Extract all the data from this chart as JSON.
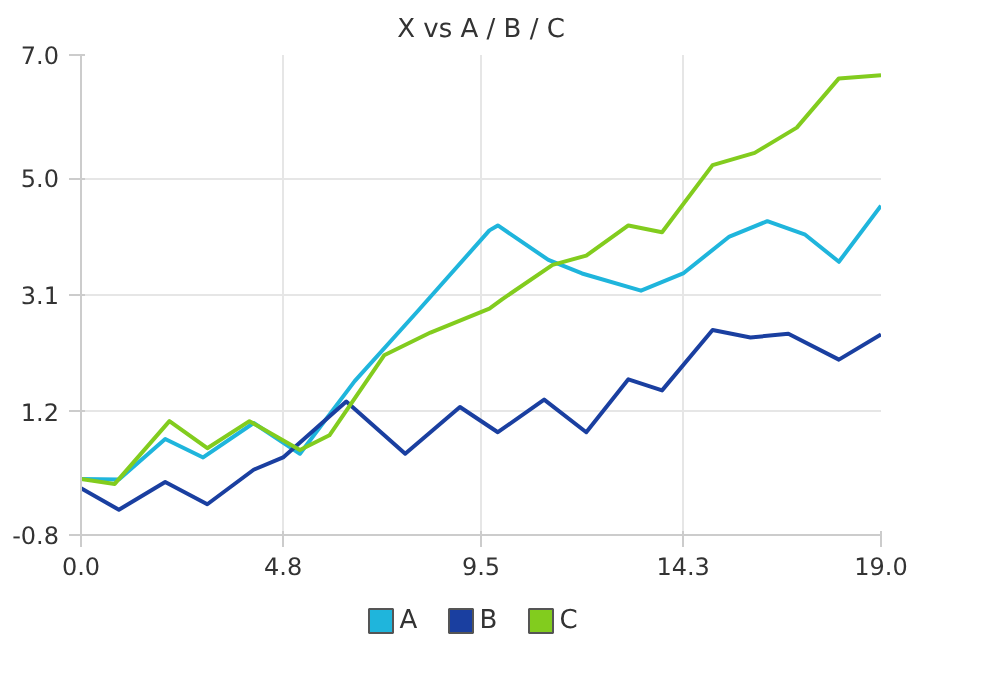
{
  "chart_data": {
    "type": "line",
    "title": "X vs A / B / C",
    "xlim": [
      0,
      19
    ],
    "ylim": [
      -0.8,
      7.0
    ],
    "xticks": [
      {
        "value": 0,
        "label": "0.0"
      },
      4.8,
      9.5,
      14.3,
      {
        "value": 19,
        "label": "19.0"
      }
    ],
    "yticks": [
      {
        "value": -0.8,
        "label": "-0.8"
      },
      1.2,
      3.1,
      {
        "value": 5,
        "label": "5.0"
      },
      {
        "value": 7,
        "label": "7.0"
      }
    ],
    "grid": true,
    "legend": "bottom",
    "marker": "none",
    "line_style": "solid",
    "series": [
      {
        "name": "A",
        "color": "#1fb5dc",
        "x": [
          0,
          0.9,
          2.0,
          2.9,
          4.1,
          5.2,
          6.5,
          8.0,
          9.7,
          9.9,
          11.1,
          11.9,
          13.3,
          14.3,
          15.4,
          16.3,
          17.2,
          18.0,
          19
        ],
        "values": [
          0.11,
          0.1,
          0.76,
          0.46,
          1.02,
          0.52,
          1.7,
          2.84,
          4.15,
          4.23,
          3.67,
          3.45,
          3.17,
          3.45,
          4.05,
          4.3,
          4.08,
          3.64,
          4.55
        ]
      },
      {
        "name": "B",
        "color": "#1a3fa0",
        "x": [
          0,
          0.9,
          2.0,
          3.0,
          4.1,
          4.8,
          6.3,
          7.7,
          9.0,
          9.9,
          11.0,
          12.0,
          13.0,
          13.8,
          15.0,
          15.9,
          16.8,
          18.0,
          19
        ],
        "values": [
          -0.04,
          -0.39,
          0.06,
          -0.3,
          0.26,
          0.46,
          1.37,
          0.52,
          1.28,
          0.87,
          1.4,
          0.87,
          1.73,
          1.55,
          2.53,
          2.41,
          2.47,
          2.05,
          2.46
        ]
      },
      {
        "name": "C",
        "color": "#82cc1e",
        "x": [
          0,
          0.8,
          2.1,
          3.0,
          4.0,
          5.2,
          5.9,
          7.2,
          8.3,
          9.7,
          10.0,
          11.2,
          12.0,
          13.0,
          13.8,
          15.0,
          16.0,
          17.0,
          18.0,
          19
        ],
        "values": [
          0.11,
          0.03,
          1.05,
          0.61,
          1.05,
          0.58,
          0.82,
          2.12,
          2.49,
          2.88,
          3.03,
          3.59,
          3.74,
          4.23,
          4.12,
          5.21,
          5.41,
          5.82,
          6.62,
          6.67
        ]
      }
    ]
  }
}
